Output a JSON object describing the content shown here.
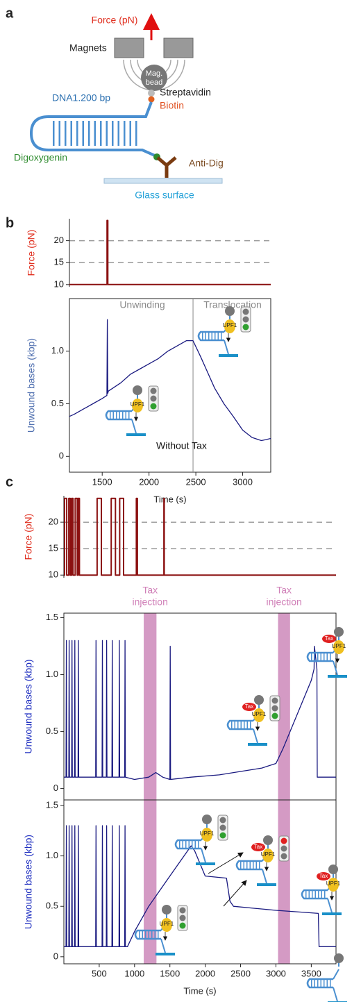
{
  "panels": [
    "a",
    "b",
    "c"
  ],
  "diagram": {
    "force": "Force (pN)",
    "magnets": "Magnets",
    "bead": [
      "Mag.",
      "bead"
    ],
    "streptavidin": "Streptavidin",
    "biotin": "Biotin",
    "dna": "DNA1.200 bp",
    "digoxygenin": "Digoxygenin",
    "anti_dig": "Anti-Dig",
    "surface": "Glass surface"
  },
  "cartoon_labels": {
    "upf1": "UPF1",
    "tax": "Tax"
  },
  "chart_data": [
    {
      "type": "line",
      "ylabel": "Force (pN)",
      "color": "#8b1010",
      "frame": false,
      "x": [
        1150,
        1552,
        1552,
        1560,
        1560,
        3300
      ],
      "values": [
        10,
        10,
        24.6,
        24.6,
        10,
        10
      ],
      "xlim": [
        1150,
        3300
      ],
      "ylim": [
        9.5,
        25
      ],
      "yticks": [
        10,
        15,
        20
      ],
      "dashed_lines": [
        15,
        20
      ]
    },
    {
      "type": "line",
      "ylabel": "Unwound bases (kbp)",
      "xlabel": "Time (s)",
      "color": "#1a1a80",
      "frame": true,
      "x": [
        1150,
        1200,
        1300,
        1400,
        1500,
        1550,
        1555,
        1560,
        1565,
        1700,
        1800,
        1900,
        2000,
        2100,
        2200,
        2300,
        2400,
        2470,
        2550,
        2600,
        2700,
        2800,
        2900,
        3000,
        3100,
        3200,
        3300
      ],
      "values": [
        0.38,
        0.4,
        0.45,
        0.5,
        0.55,
        0.58,
        1.3,
        0.6,
        0.62,
        0.7,
        0.78,
        0.83,
        0.88,
        0.93,
        1.0,
        1.05,
        1.1,
        1.1,
        0.95,
        0.85,
        0.65,
        0.5,
        0.38,
        0.25,
        0.18,
        0.15,
        0.17
      ],
      "xlim": [
        1150,
        3300
      ],
      "ylim": [
        -0.15,
        1.5
      ],
      "xticks": [
        1500,
        2000,
        2500,
        3000
      ],
      "yticks": [
        0,
        0.5,
        {
          "value": 1,
          "label": "1.0"
        }
      ],
      "divider": 2470,
      "annotations": [
        "Unwinding",
        "Translocation",
        "Without Tax"
      ]
    },
    {
      "type": "line",
      "ylabel": "Force (pN)",
      "color": "#8b1010",
      "frame": false,
      "x": [
        0,
        10,
        10,
        40,
        40,
        70,
        70,
        90,
        90,
        110,
        110,
        130,
        130,
        160,
        160,
        190,
        190,
        200,
        200,
        220,
        220,
        470,
        470,
        530,
        530,
        670,
        670,
        730,
        730,
        790,
        790,
        845,
        845,
        1025,
        1025,
        1040,
        1040,
        1415,
        1415,
        1420,
        1420,
        3850
      ],
      "values": [
        10,
        10,
        24.5,
        24.5,
        10,
        10,
        24.5,
        24.5,
        10,
        10,
        24.5,
        24.5,
        10,
        10,
        24.5,
        24.5,
        10,
        10,
        24.5,
        24.5,
        10,
        10,
        24.5,
        24.5,
        10,
        10,
        24.5,
        24.5,
        10,
        10,
        24.5,
        24.5,
        10,
        10,
        24.5,
        24.5,
        10,
        10,
        24.5,
        24.5,
        10,
        10
      ],
      "xlim": [
        0,
        3850
      ],
      "ylim": [
        9.5,
        25
      ],
      "yticks": [
        10,
        15,
        20
      ],
      "dashed_lines": [
        15,
        20
      ]
    },
    {
      "type": "line",
      "ylabel": "Unwound bases (kbp)",
      "color": "#1a1a80",
      "frame": true,
      "x": [
        0,
        30,
        35,
        40,
        70,
        75,
        80,
        110,
        115,
        120,
        150,
        155,
        160,
        200,
        205,
        210,
        450,
        455,
        460,
        540,
        545,
        550,
        600,
        605,
        610,
        680,
        685,
        690,
        780,
        785,
        790,
        860,
        865,
        870,
        1000,
        1200,
        1300,
        1400,
        1500,
        1505,
        1510,
        1800,
        2200,
        2500,
        2800,
        3000,
        3100,
        3200,
        3300,
        3400,
        3500,
        3540,
        3545,
        3580,
        3585,
        3700,
        3850
      ],
      "values": [
        0.1,
        0.1,
        1.3,
        0.1,
        0.1,
        1.3,
        0.1,
        0.1,
        1.3,
        0.1,
        0.1,
        1.3,
        0.1,
        0.1,
        1.3,
        0.1,
        0.1,
        1.3,
        0.1,
        0.1,
        1.3,
        0.1,
        0.1,
        1.3,
        0.1,
        0.1,
        1.3,
        0.1,
        0.1,
        1.3,
        0.1,
        0.1,
        1.3,
        0.1,
        0.08,
        0.1,
        0.14,
        0.1,
        0.08,
        1.25,
        0.08,
        0.1,
        0.12,
        0.15,
        0.18,
        0.22,
        0.35,
        0.5,
        0.65,
        0.8,
        0.95,
        1.05,
        1.25,
        1.05,
        0.1,
        0.1,
        0.1
      ],
      "xlim": [
        0,
        3850
      ],
      "ylim": [
        -0.1,
        1.54
      ],
      "yticks": [
        0,
        0.5,
        {
          "value": 1,
          "label": "1.0"
        },
        1.5
      ],
      "bands": [
        [
          1130,
          1310
        ],
        [
          3030,
          3200
        ]
      ],
      "band_color": "#d49ac4",
      "band_label": [
        "Tax",
        "injection"
      ]
    },
    {
      "type": "line",
      "ylabel": "Unwound bases (kbp)",
      "xlabel": "Time (s)",
      "color": "#1a1a80",
      "frame": true,
      "x": [
        0,
        30,
        35,
        40,
        70,
        75,
        80,
        110,
        115,
        120,
        150,
        155,
        160,
        200,
        205,
        210,
        450,
        455,
        460,
        540,
        545,
        550,
        600,
        605,
        610,
        680,
        685,
        690,
        780,
        785,
        790,
        860,
        865,
        870,
        900,
        1000,
        1200,
        1400,
        1600,
        1800,
        1850,
        2000,
        2300,
        2350,
        2400,
        2700,
        3000,
        3400,
        3600,
        3610,
        3850
      ],
      "values": [
        0.1,
        0.1,
        1.3,
        0.1,
        0.1,
        1.3,
        0.1,
        0.1,
        1.3,
        0.1,
        0.1,
        1.3,
        0.1,
        0.1,
        1.3,
        0.1,
        0.1,
        1.3,
        0.1,
        0.1,
        1.3,
        0.1,
        0.1,
        1.3,
        0.1,
        0.1,
        1.3,
        0.1,
        0.1,
        1.3,
        0.1,
        0.1,
        1.3,
        0.1,
        0.1,
        0.25,
        0.5,
        0.7,
        0.9,
        1.1,
        1.05,
        0.8,
        0.78,
        0.55,
        0.5,
        0.48,
        0.46,
        0.44,
        0.43,
        0.1,
        0.1
      ],
      "xlim": [
        0,
        3850
      ],
      "ylim": [
        -0.07,
        1.555
      ],
      "xticks": [
        500,
        1000,
        1500,
        2000,
        2500,
        3000,
        3500
      ],
      "yticks": [
        0,
        0.5,
        {
          "value": 1,
          "label": "1.0"
        },
        1.5
      ],
      "bands": [
        [
          1130,
          1310
        ],
        [
          3030,
          3200
        ]
      ],
      "band_color": "#d49ac4"
    }
  ]
}
